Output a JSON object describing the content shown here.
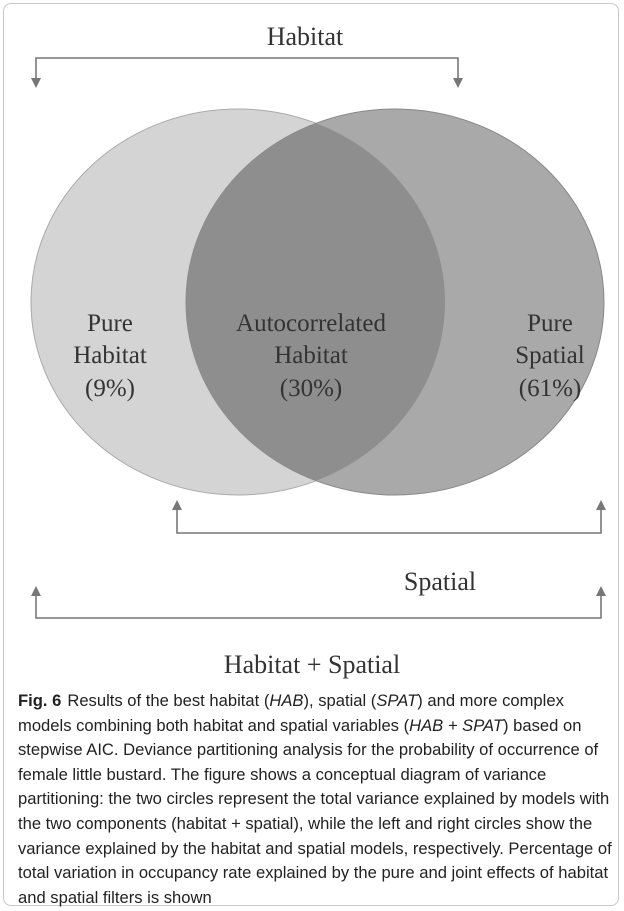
{
  "figure": {
    "labels": {
      "top": "Habitat",
      "middle": "Spatial",
      "bottom": "Habitat + Spatial"
    },
    "regions": [
      {
        "lines": [
          "Pure",
          "Habitat",
          "(9%)"
        ]
      },
      {
        "lines": [
          "Autocorrelated",
          "Habitat",
          "(30%)"
        ]
      },
      {
        "lines": [
          "Pure",
          "Spatial",
          "(61%)"
        ]
      }
    ]
  },
  "caption": {
    "label": "Fig. 6",
    "parts": [
      "Results of the best habitat (",
      "HAB",
      "), spatial (",
      "SPAT",
      ") and more complex models combining both habitat and spatial variables (",
      "HAB + SPAT",
      ") based on stepwise AIC. Deviance partitioning analysis for the probability of occurrence of female little bustard. The figure shows a conceptual diagram of variance partitioning: the two circles represent the total variance explained by models with the two components (habitat + spatial), while the left and right circles show the variance explained by the habitat and spatial models, respectively. Percentage of total variation in occupancy rate explained by the pure and joint effects of habitat and spatial filters is shown"
    ]
  }
}
